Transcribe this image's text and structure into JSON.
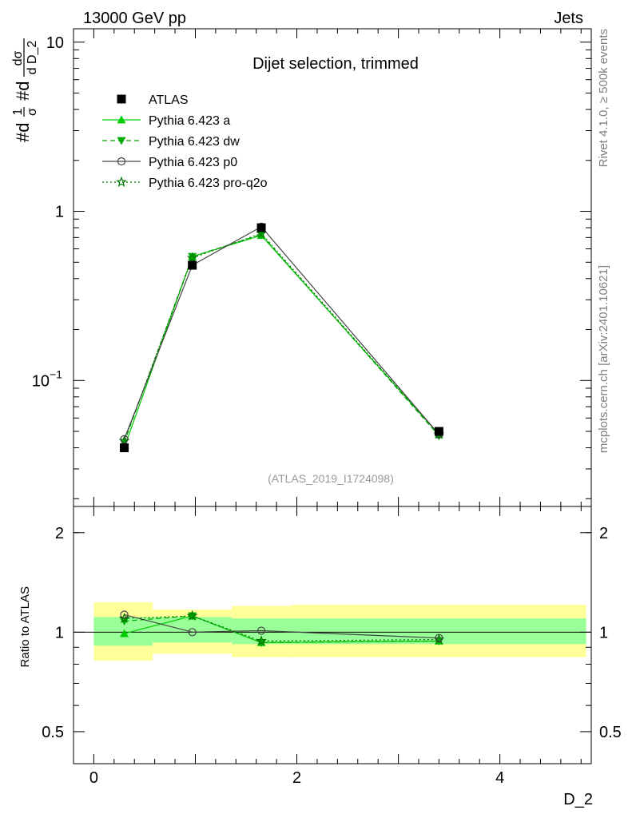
{
  "header": {
    "energy_label": "13000 GeV pp",
    "category_label": "Jets"
  },
  "side_labels": {
    "rivet": "Rivet 4.1.0, ≥ 500k events",
    "mcplots": "mcplots.cern.ch [arXiv:2401.10621]"
  },
  "y_axis_title": {
    "hash_d": "#d",
    "frac_num": "1",
    "frac_den": "σ",
    "hash_d2": "#d",
    "dsigma_num": "dσ",
    "dsigma_den": "d D_2"
  },
  "ratio_ylabel": "Ratio to ATLAS",
  "x_axis_label": "D_2",
  "analysis_id": "(ATLAS_2019_I1724098)",
  "chart_data": [
    {
      "type": "line",
      "panel": "main",
      "title": "Dijet selection, trimmed",
      "xlabel": "D_2",
      "ylabel": "#d1/σ #d dσ/d D_2",
      "yscale": "log",
      "xlim": [
        -0.2,
        4.9
      ],
      "ylim": [
        0.018,
        12
      ],
      "y_ticks": [
        {
          "value": 0.1,
          "base": "10",
          "exp": "−1"
        },
        {
          "value": 1,
          "label": "1"
        },
        {
          "value": 10,
          "label": "10"
        }
      ],
      "x": [
        0.3,
        0.97,
        1.65,
        3.4
      ],
      "series": [
        {
          "name": "ATLAS",
          "marker": "square",
          "color": "#000000",
          "values": [
            0.04,
            0.48,
            0.8,
            0.05
          ]
        },
        {
          "name": "Pythia 6.423 a",
          "marker": "triangle-up",
          "line": "solid",
          "color": "#00cc00",
          "values": [
            0.04,
            0.54,
            0.72,
            0.048
          ]
        },
        {
          "name": "Pythia 6.423 dw",
          "marker": "triangle-down",
          "line": "dashed",
          "color": "#00aa00",
          "values": [
            0.043,
            0.54,
            0.73,
            0.047
          ]
        },
        {
          "name": "Pythia 6.423 p0",
          "marker": "circle-open",
          "line": "solid",
          "color": "#444444",
          "values": [
            0.045,
            0.48,
            0.81,
            0.048
          ]
        },
        {
          "name": "Pythia 6.423 pro-q2o",
          "marker": "star",
          "line": "dotted",
          "color": "#007700",
          "values": [
            0.044,
            0.53,
            0.74,
            0.048
          ]
        }
      ]
    },
    {
      "type": "line",
      "panel": "ratio",
      "ylabel": "Ratio to ATLAS",
      "xlabel": "D_2",
      "yscale": "log",
      "xlim": [
        -0.2,
        4.9
      ],
      "ylim": [
        0.4,
        2.4
      ],
      "y_ticks": [
        {
          "value": 0.5,
          "label": "0.5"
        },
        {
          "value": 1,
          "label": "1"
        },
        {
          "value": 2,
          "label": "2"
        }
      ],
      "x_ticks": [
        {
          "value": 0,
          "label": "0"
        },
        {
          "value": 2,
          "label": "2"
        },
        {
          "value": 4,
          "label": "4"
        }
      ],
      "bands": [
        {
          "x_low": 0.0,
          "x_high": 0.58,
          "inner": [
            0.91,
            1.11
          ],
          "outer": [
            0.82,
            1.23
          ]
        },
        {
          "x_low": 0.58,
          "x_high": 1.36,
          "inner": [
            0.93,
            1.11
          ],
          "outer": [
            0.86,
            1.17
          ]
        },
        {
          "x_low": 1.36,
          "x_high": 1.95,
          "inner": [
            0.92,
            1.1
          ],
          "outer": [
            0.84,
            1.2
          ]
        },
        {
          "x_low": 1.95,
          "x_high": 4.85,
          "inner": [
            0.92,
            1.1
          ],
          "outer": [
            0.84,
            1.21
          ]
        }
      ],
      "x": [
        0.3,
        0.97,
        1.65,
        3.4
      ],
      "series": [
        {
          "name": "Pythia 6.423 a",
          "marker": "triangle-up",
          "line": "solid",
          "color": "#00cc00",
          "values": [
            0.99,
            1.12,
            0.93,
            0.94
          ]
        },
        {
          "name": "Pythia 6.423 dw",
          "marker": "triangle-down",
          "line": "dashed",
          "color": "#00aa00",
          "values": [
            1.08,
            1.12,
            0.93,
            0.94
          ]
        },
        {
          "name": "Pythia 6.423 p0",
          "marker": "circle-open",
          "line": "solid",
          "color": "#444444",
          "values": [
            1.13,
            1.0,
            1.01,
            0.96
          ]
        },
        {
          "name": "Pythia 6.423 pro-q2o",
          "marker": "star",
          "line": "dotted",
          "color": "#007700",
          "values": [
            1.1,
            1.12,
            0.94,
            0.95
          ]
        }
      ]
    }
  ]
}
